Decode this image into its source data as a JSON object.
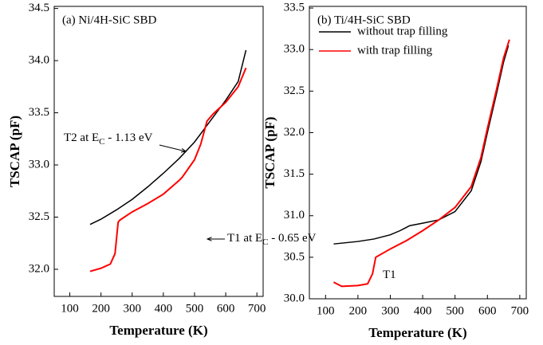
{
  "chart_data": [
    {
      "type": "line",
      "label": "(a) Ni/4H-SiC SBD",
      "xlabel": "Temperature (K)",
      "ylabel": "TSCAP (pF)",
      "xlim": [
        50,
        720
      ],
      "xticks": [
        100,
        200,
        300,
        400,
        500,
        600,
        700
      ],
      "ylim": [
        31.74,
        34.52
      ],
      "yticks": [
        {
          "value": 32,
          "label": "32.0"
        },
        {
          "value": 32.5,
          "label": "32.5"
        },
        {
          "value": 33,
          "label": "33.0"
        },
        {
          "value": 33.5,
          "label": "33.5"
        },
        {
          "value": 34,
          "label": "34.0"
        },
        {
          "value": 34.5,
          "label": "34.5"
        }
      ],
      "series": [
        {
          "color": "#000000",
          "x": [
            165,
            200,
            250,
            300,
            350,
            400,
            450,
            500,
            550,
            600,
            640,
            665
          ],
          "values": [
            32.43,
            32.48,
            32.57,
            32.67,
            32.79,
            32.92,
            33.06,
            33.22,
            33.42,
            33.62,
            33.8,
            34.1
          ]
        },
        {
          "color": "#ff0000",
          "x": [
            165,
            200,
            230,
            245,
            255,
            260,
            300,
            350,
            400,
            450,
            460,
            500,
            520,
            540,
            560,
            600,
            640,
            665
          ],
          "values": [
            31.98,
            32.01,
            32.05,
            32.15,
            32.45,
            32.47,
            32.55,
            32.63,
            32.72,
            32.85,
            32.88,
            33.05,
            33.2,
            33.42,
            33.49,
            33.6,
            33.75,
            33.93
          ]
        }
      ],
      "annotations": [
        {
          "parts": [
            "T2 at E",
            "C",
            " - 1.13 eV"
          ]
        },
        {
          "parts": [
            "T1 at E",
            "C",
            " - 0.65 eV"
          ]
        }
      ]
    },
    {
      "type": "line",
      "label": "(b) Ti/4H-SiC SBD",
      "xlabel": "Temperature (K)",
      "ylabel": "TSCAP (pF)",
      "xlim": [
        50,
        720
      ],
      "xticks": [
        100,
        200,
        300,
        400,
        500,
        600,
        700
      ],
      "ylim": [
        30,
        33.52
      ],
      "yticks": [
        {
          "value": 30,
          "label": "30.0"
        },
        {
          "value": 30.5,
          "label": "30.5"
        },
        {
          "value": 31,
          "label": "31.0"
        },
        {
          "value": 31.5,
          "label": "31.5"
        },
        {
          "value": 32,
          "label": "32.0"
        },
        {
          "value": 32.5,
          "label": "32.5"
        },
        {
          "value": 33,
          "label": "33.0"
        },
        {
          "value": 33.5,
          "label": "33.5"
        }
      ],
      "legend": "upper left",
      "series": [
        {
          "name": "without trap filling",
          "color": "#000000",
          "x": [
            125,
            200,
            250,
            300,
            330,
            360,
            400,
            450,
            500,
            550,
            580,
            600,
            630,
            650,
            665
          ],
          "values": [
            30.66,
            30.69,
            30.72,
            30.77,
            30.82,
            30.88,
            30.91,
            30.95,
            31.05,
            31.3,
            31.65,
            32.0,
            32.5,
            32.85,
            33.05
          ]
        },
        {
          "name": "with trap filling",
          "color": "#ff0000",
          "x": [
            125,
            150,
            200,
            230,
            245,
            255,
            300,
            350,
            400,
            450,
            500,
            550,
            580,
            600,
            630,
            650,
            668
          ],
          "values": [
            30.2,
            30.15,
            30.16,
            30.18,
            30.3,
            30.5,
            30.6,
            30.7,
            30.82,
            30.95,
            31.1,
            31.35,
            31.7,
            32.05,
            32.55,
            32.9,
            33.12
          ]
        }
      ],
      "annotations": [
        {
          "parts": [
            "T1"
          ]
        }
      ]
    }
  ]
}
